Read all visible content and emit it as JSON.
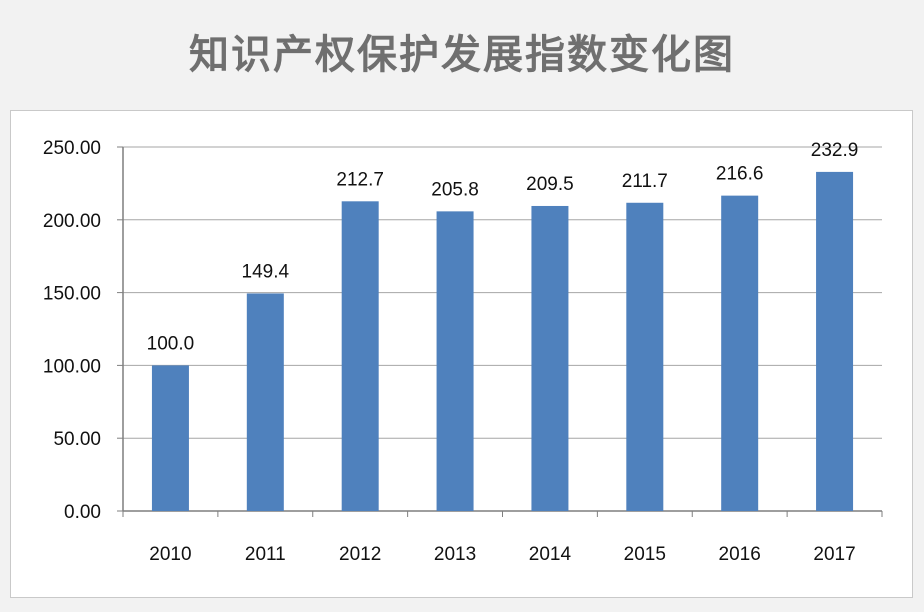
{
  "title": "知识产权保护发展指数变化图",
  "colors": {
    "background": "#f2f2f2",
    "bar": "#4f81bd",
    "title": "#6f6f6f",
    "grid": "#a6a6a6"
  },
  "chart_data": {
    "type": "bar",
    "title": "知识产权保护发展指数变化图",
    "xlabel": "",
    "ylabel": "",
    "categories": [
      "2010",
      "2011",
      "2012",
      "2013",
      "2014",
      "2015",
      "2016",
      "2017"
    ],
    "values": [
      100.0,
      149.4,
      212.7,
      205.8,
      209.5,
      211.7,
      216.6,
      232.9
    ],
    "value_labels": [
      "100.0",
      "149.4",
      "212.7",
      "205.8",
      "209.5",
      "211.7",
      "216.6",
      "232.9"
    ],
    "ylim": [
      0,
      250
    ],
    "yticks": [
      0,
      50,
      100,
      150,
      200,
      250
    ],
    "ytick_labels": [
      "0.00",
      "50.00",
      "100.00",
      "150.00",
      "200.00",
      "250.00"
    ],
    "grid": true,
    "legend": "none"
  }
}
